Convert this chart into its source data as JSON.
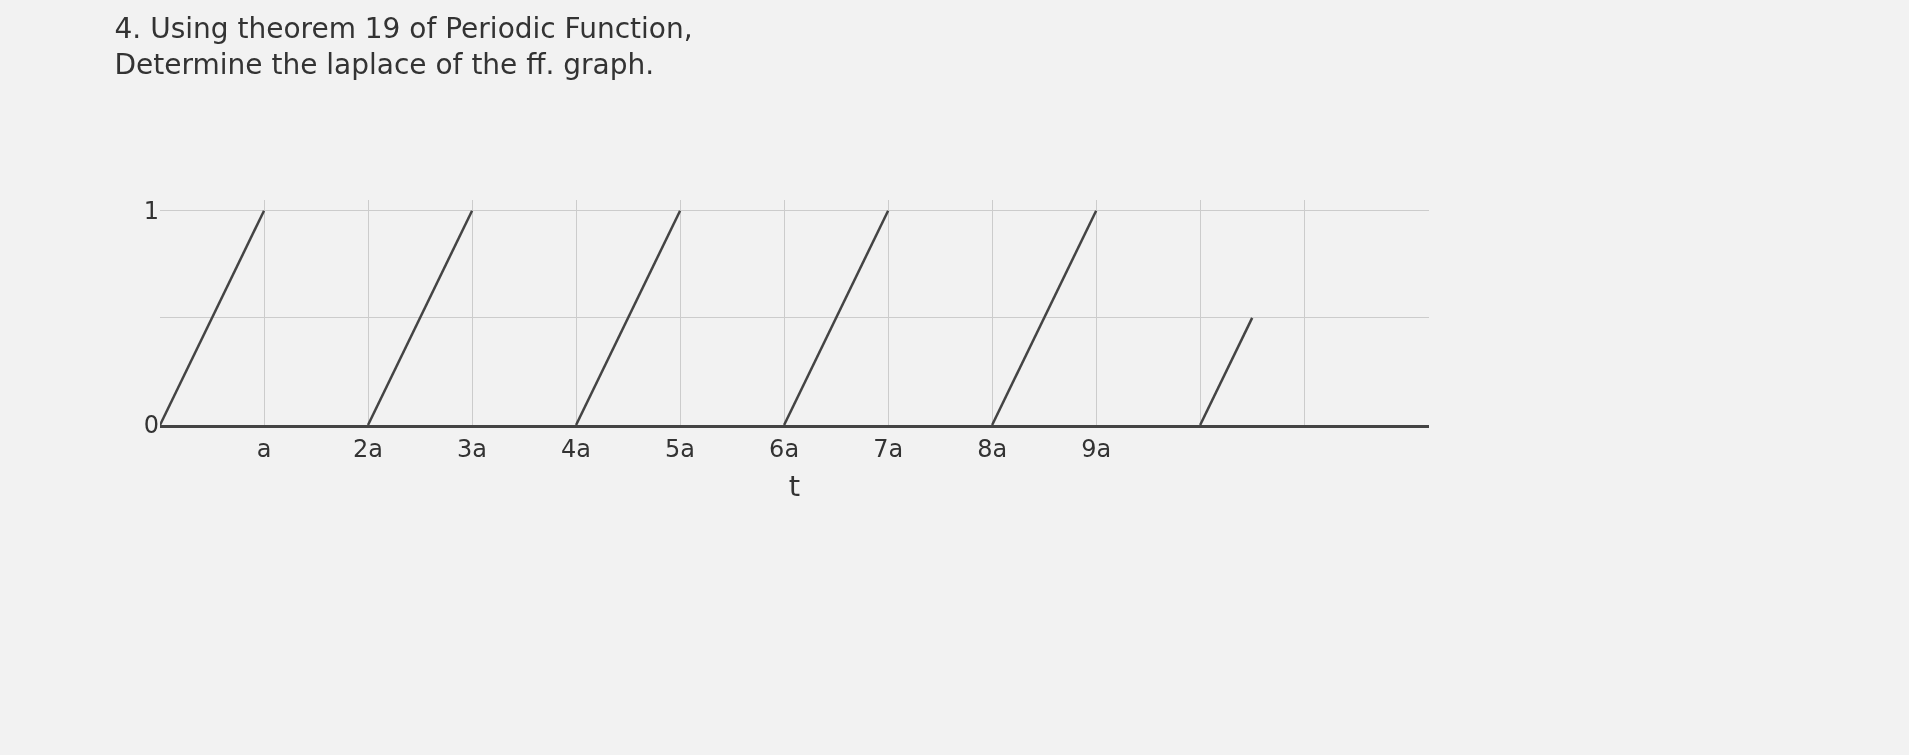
{
  "chart_data": {
    "type": "line",
    "title": "4. Using theorem 19 of Periodic Function,",
    "subtitle": "Determine the laplace of the ff. graph.",
    "xlabel": "t",
    "series": [
      {
        "color": "#444444",
        "x": [
          0,
          1
        ],
        "values": [
          0,
          1
        ]
      },
      {
        "color": "#444444",
        "x": [
          2,
          3
        ],
        "values": [
          0,
          1
        ]
      },
      {
        "color": "#444444",
        "x": [
          4,
          5
        ],
        "values": [
          0,
          1
        ]
      },
      {
        "color": "#444444",
        "x": [
          6,
          7
        ],
        "values": [
          0,
          1
        ]
      },
      {
        "color": "#444444",
        "x": [
          8,
          9
        ],
        "values": [
          0,
          1
        ]
      },
      {
        "color": "#444444",
        "x": [
          10,
          10.5
        ],
        "values": [
          0,
          0.5
        ]
      }
    ],
    "xlim": [
      0,
      12.2
    ],
    "xticks": [
      {
        "value": 1,
        "label": "a"
      },
      {
        "value": 2,
        "label": "2a"
      },
      {
        "value": 3,
        "label": "3a"
      },
      {
        "value": 4,
        "label": "4a"
      },
      {
        "value": 5,
        "label": "5a"
      },
      {
        "value": 6,
        "label": "6a"
      },
      {
        "value": 7,
        "label": "7a"
      },
      {
        "value": 8,
        "label": "8a"
      },
      {
        "value": 9,
        "label": "9a"
      },
      {
        "value": 10,
        "label": null
      },
      {
        "value": 11,
        "label": null
      }
    ],
    "ylim": [
      0,
      1.05
    ],
    "yticks": [
      0,
      {
        "value": 0.5,
        "label": null
      },
      1
    ],
    "grid": true,
    "marker": "none",
    "line_style": "solid"
  }
}
